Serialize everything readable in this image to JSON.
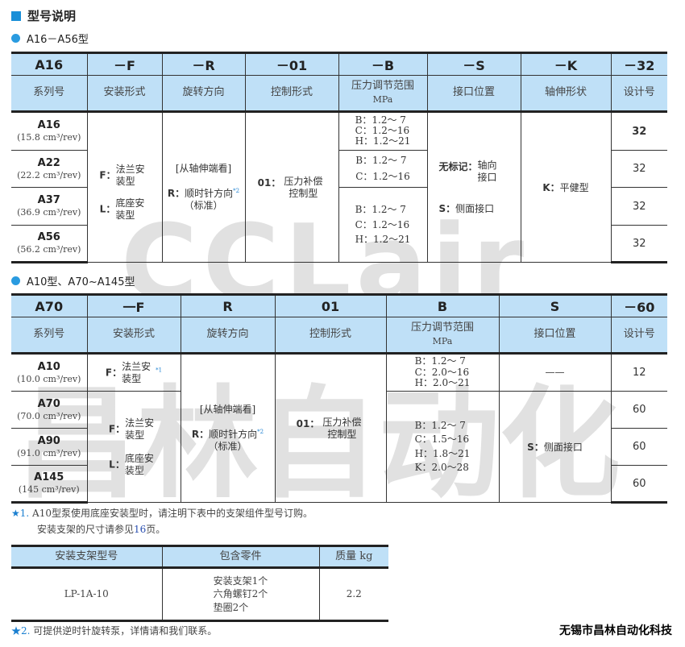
{
  "title": "型号说明",
  "watermark": {
    "latin": "CCLair",
    "chinese": "昌林自动化"
  },
  "section1": {
    "title": "A16－A56型",
    "codes": [
      "A16",
      "－F",
      "－R",
      "－01",
      "－B",
      "－S",
      "－K",
      "－32"
    ],
    "labels": [
      "系列号",
      "安装形式",
      "旋转方向",
      "控制形式",
      "压力调节范围",
      "接口位置",
      "轴伸形状",
      "设计号"
    ],
    "pressure_unit": "MPa",
    "models": [
      {
        "name": "A16",
        "disp": "(15.8 cm³/rev)",
        "design": "32"
      },
      {
        "name": "A22",
        "disp": "(22.2 cm³/rev)",
        "design": "32"
      },
      {
        "name": "A37",
        "disp": "(36.9 cm³/rev)",
        "design": "32"
      },
      {
        "name": "A56",
        "disp": "(56.2 cm³/rev)",
        "design": "32"
      }
    ],
    "mount": [
      {
        "k": "F：",
        "v": "法兰安装型"
      },
      {
        "k": "L：",
        "v": "底座安装型"
      }
    ],
    "rotation": {
      "view": "[从轴伸端看]",
      "k": "R：",
      "v": "顺时针方向",
      "note": "*2",
      "std": "（标准）"
    },
    "control": {
      "k": "01：",
      "v": "压力补偿控制型"
    },
    "pressure": [
      [
        "B：1.2～ 7",
        "C：1.2～16",
        "H：1.2～21"
      ],
      [
        "B：1.2～ 7",
        "C：1.2～16"
      ],
      [
        "B：1.2～ 7",
        "C：1.2～16",
        "H：1.2～21"
      ]
    ],
    "port": [
      {
        "k": "无标记：",
        "v": "轴向接口"
      },
      {
        "k": "S：",
        "v": "侧面接口"
      }
    ],
    "shaft": {
      "k": "K：",
      "v": "平健型"
    }
  },
  "section2": {
    "title": "A10型、A70~A145型",
    "codes": [
      "A70",
      "一F",
      "R",
      "01",
      "B",
      "S",
      "－60"
    ],
    "labels": [
      "系列号",
      "安装形式",
      "旋转方向",
      "控制形式",
      "压力调节范围",
      "接口位置",
      "设计号"
    ],
    "pressure_unit": "MPa",
    "models": [
      {
        "name": "A10",
        "disp": "(10.0 cm³/rev)",
        "design": "12"
      },
      {
        "name": "A70",
        "disp": "(70.0 cm³/rev)",
        "design": "60"
      },
      {
        "name": "A90",
        "disp": "(91.0 cm³/rev)",
        "design": "60"
      },
      {
        "name": "A145",
        "disp": "(145 cm³/rev)",
        "design": "60"
      }
    ],
    "mount_a10": {
      "k": "F：",
      "v": "法兰安装型",
      "note": "*1"
    },
    "mount": [
      {
        "k": "F：",
        "v": "法兰安装型"
      },
      {
        "k": "L：",
        "v": "底座安装型"
      }
    ],
    "rotation": {
      "view": "[从轴伸端看]",
      "k": "R：",
      "v": "顺时针方向",
      "note": "*2",
      "std": "（标准）"
    },
    "control": {
      "k": "01：",
      "v": "压力补偿控制型"
    },
    "pressure": [
      [
        "B：1.2～ 7",
        "C：2.0～16",
        "H：2.0～21"
      ],
      [
        "B：1.2～ 7",
        "C：1.5～16",
        "H：1.8～21",
        "K：2.0～28"
      ]
    ],
    "port_a10": "——",
    "port": {
      "k": "S：",
      "v": "侧面接口"
    }
  },
  "note1": {
    "star": "★1.",
    "line1": "A10型泵使用底座安装型时，请注明下表中的支架组件型号订购。",
    "line2a": "安装支架的尺寸请参见",
    "page": "16",
    "line2b": "页。"
  },
  "bracket": {
    "headers": [
      "安装支架型号",
      "包含零件",
      "质量 kg"
    ],
    "model": "LP-1A-10",
    "parts": [
      "安装支架1个",
      "六角螺钉2个",
      "垫圈2个"
    ],
    "mass": "2.2"
  },
  "note2": {
    "star": "★2.",
    "text": "可提供逆时针旋转泵，详情请和我们联系。"
  },
  "company": "无锡市昌林自动化科技"
}
